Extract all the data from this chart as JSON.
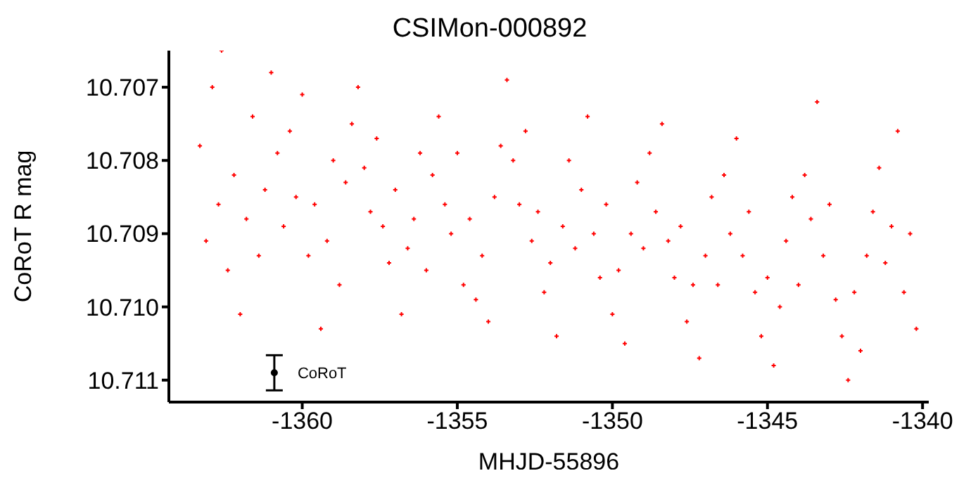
{
  "chart_data": {
    "type": "scatter",
    "title": "CSIMon-000892",
    "xlabel": "MHJD-55896",
    "ylabel": "CoRoT R mag",
    "marker": "cross",
    "grid": false,
    "legend": false,
    "xlim": [
      -1364.3,
      -1339.8
    ],
    "xticks": [
      -1360,
      -1355,
      -1350,
      -1345,
      -1340
    ],
    "ylim": [
      10.7113,
      10.7065
    ],
    "yticks": [
      {
        "value": 10.707,
        "label": "10.707"
      },
      {
        "value": 10.708,
        "label": "10.708"
      },
      {
        "value": 10.709,
        "label": "10.709"
      },
      {
        "value": 10.71,
        "label": "10.710"
      },
      {
        "value": 10.711,
        "label": "10.711"
      }
    ],
    "series": [
      {
        "color": "#ff0000",
        "x": [
          -1363.3,
          -1363.1,
          -1362.9,
          -1362.7,
          -1362.6,
          -1362.4,
          -1362.2,
          -1362.0,
          -1361.8,
          -1361.6,
          -1361.4,
          -1361.2,
          -1361.0,
          -1360.8,
          -1360.6,
          -1360.4,
          -1360.2,
          -1360.0,
          -1359.8,
          -1359.6,
          -1359.4,
          -1359.2,
          -1359.0,
          -1358.8,
          -1358.6,
          -1358.4,
          -1358.2,
          -1358.0,
          -1357.8,
          -1357.6,
          -1357.4,
          -1357.2,
          -1357.0,
          -1356.8,
          -1356.6,
          -1356.4,
          -1356.2,
          -1356.0,
          -1355.8,
          -1355.6,
          -1355.4,
          -1355.2,
          -1355.0,
          -1354.8,
          -1354.6,
          -1354.4,
          -1354.2,
          -1354.0,
          -1353.8,
          -1353.6,
          -1353.4,
          -1353.2,
          -1353.0,
          -1352.8,
          -1352.6,
          -1352.4,
          -1352.2,
          -1352.0,
          -1351.8,
          -1351.6,
          -1351.4,
          -1351.2,
          -1351.0,
          -1350.8,
          -1350.6,
          -1350.4,
          -1350.2,
          -1350.0,
          -1349.8,
          -1349.6,
          -1349.4,
          -1349.2,
          -1349.0,
          -1348.8,
          -1348.6,
          -1348.4,
          -1348.2,
          -1348.0,
          -1347.8,
          -1347.6,
          -1347.4,
          -1347.2,
          -1347.0,
          -1346.8,
          -1346.6,
          -1346.4,
          -1346.2,
          -1346.0,
          -1345.8,
          -1345.6,
          -1345.4,
          -1345.2,
          -1345.0,
          -1344.8,
          -1344.6,
          -1344.4,
          -1344.2,
          -1344.0,
          -1343.8,
          -1343.6,
          -1343.4,
          -1343.2,
          -1343.0,
          -1342.8,
          -1342.6,
          -1342.4,
          -1342.2,
          -1342.0,
          -1341.8,
          -1341.6,
          -1341.4,
          -1341.2,
          -1341.0,
          -1340.8,
          -1340.6,
          -1340.4,
          -1340.2
        ],
        "values": [
          10.7078,
          10.7091,
          10.707,
          10.7086,
          10.7065,
          10.7095,
          10.7082,
          10.7101,
          10.7088,
          10.7074,
          10.7093,
          10.7084,
          10.7068,
          10.7079,
          10.7089,
          10.7076,
          10.7085,
          10.7071,
          10.7093,
          10.7086,
          10.7103,
          10.7091,
          10.708,
          10.7097,
          10.7083,
          10.7075,
          10.707,
          10.7081,
          10.7087,
          10.7077,
          10.7089,
          10.7094,
          10.7084,
          10.7101,
          10.7092,
          10.7088,
          10.7079,
          10.7095,
          10.7082,
          10.7074,
          10.7086,
          10.709,
          10.7079,
          10.7097,
          10.7088,
          10.7099,
          10.7093,
          10.7102,
          10.7085,
          10.7078,
          10.7069,
          10.708,
          10.7086,
          10.7076,
          10.7091,
          10.7087,
          10.7098,
          10.7094,
          10.7104,
          10.7089,
          10.708,
          10.7092,
          10.7084,
          10.7074,
          10.709,
          10.7096,
          10.7086,
          10.7101,
          10.7095,
          10.7105,
          10.709,
          10.7083,
          10.7092,
          10.7079,
          10.7087,
          10.7075,
          10.7091,
          10.7096,
          10.7089,
          10.7102,
          10.7097,
          10.7107,
          10.7093,
          10.7085,
          10.7097,
          10.7082,
          10.709,
          10.7077,
          10.7093,
          10.7087,
          10.7098,
          10.7104,
          10.7096,
          10.7108,
          10.71,
          10.7091,
          10.7085,
          10.7097,
          10.7082,
          10.7088,
          10.7072,
          10.7093,
          10.7086,
          10.7099,
          10.7104,
          10.711,
          10.7098,
          10.7106,
          10.7093,
          10.7087,
          10.7081,
          10.7094,
          10.7089,
          10.7076,
          10.7098,
          10.709,
          10.7103
        ]
      },
      {
        "name": "CoRoT",
        "color": "#000000",
        "marker": "circle",
        "x": [
          -1360.9
        ],
        "values": [
          10.7109
        ],
        "errors": [
          0.00024
        ]
      }
    ]
  }
}
